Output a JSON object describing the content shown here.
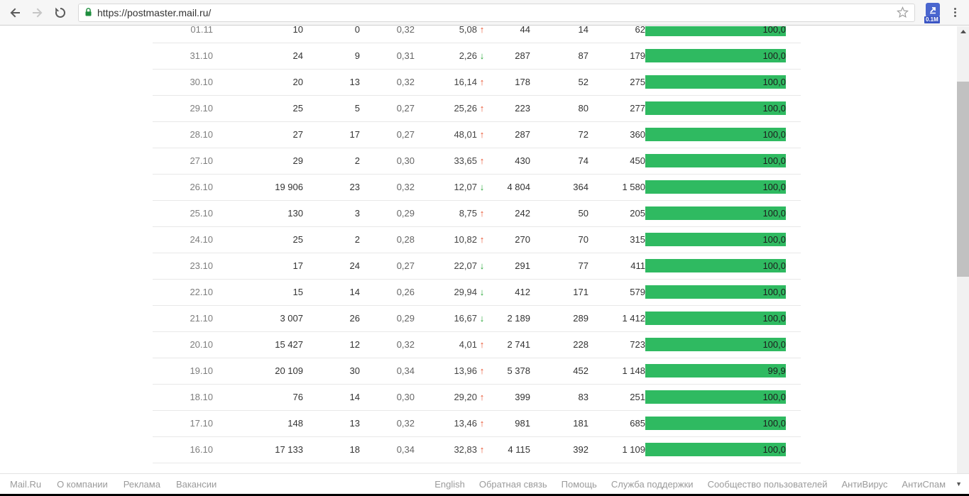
{
  "colors": {
    "bar_green": "#2fba61",
    "trend_up_red": "#e8502c",
    "trend_down_green": "#27a637",
    "lock_green": "#1e8e3e"
  },
  "browser": {
    "url": "https://postmaster.mail.ru/",
    "extension_badge": "0.1M"
  },
  "table": {
    "rows": [
      {
        "date": "01.11",
        "c1": "10",
        "c2": "0",
        "c3": "0,32",
        "pct": "5,08",
        "trend": "up",
        "c4": "44",
        "c5": "14",
        "c6": "62",
        "bar": "100,0",
        "bar_pct": 100
      },
      {
        "date": "31.10",
        "c1": "24",
        "c2": "9",
        "c3": "0,31",
        "pct": "2,26",
        "trend": "down",
        "c4": "287",
        "c5": "87",
        "c6": "179",
        "bar": "100,0",
        "bar_pct": 100
      },
      {
        "date": "30.10",
        "c1": "20",
        "c2": "13",
        "c3": "0,32",
        "pct": "16,14",
        "trend": "up",
        "c4": "178",
        "c5": "52",
        "c6": "275",
        "bar": "100,0",
        "bar_pct": 100
      },
      {
        "date": "29.10",
        "c1": "25",
        "c2": "5",
        "c3": "0,27",
        "pct": "25,26",
        "trend": "up",
        "c4": "223",
        "c5": "80",
        "c6": "277",
        "bar": "100,0",
        "bar_pct": 100
      },
      {
        "date": "28.10",
        "c1": "27",
        "c2": "17",
        "c3": "0,27",
        "pct": "48,01",
        "trend": "up",
        "c4": "287",
        "c5": "72",
        "c6": "360",
        "bar": "100,0",
        "bar_pct": 100
      },
      {
        "date": "27.10",
        "c1": "29",
        "c2": "2",
        "c3": "0,30",
        "pct": "33,65",
        "trend": "up",
        "c4": "430",
        "c5": "74",
        "c6": "450",
        "bar": "100,0",
        "bar_pct": 100
      },
      {
        "date": "26.10",
        "c1": "19 906",
        "c2": "23",
        "c3": "0,32",
        "pct": "12,07",
        "trend": "down",
        "c4": "4 804",
        "c5": "364",
        "c6": "1 580",
        "bar": "100,0",
        "bar_pct": 100
      },
      {
        "date": "25.10",
        "c1": "130",
        "c2": "3",
        "c3": "0,29",
        "pct": "8,75",
        "trend": "up",
        "c4": "242",
        "c5": "50",
        "c6": "205",
        "bar": "100,0",
        "bar_pct": 100
      },
      {
        "date": "24.10",
        "c1": "25",
        "c2": "2",
        "c3": "0,28",
        "pct": "10,82",
        "trend": "up",
        "c4": "270",
        "c5": "70",
        "c6": "315",
        "bar": "100,0",
        "bar_pct": 100
      },
      {
        "date": "23.10",
        "c1": "17",
        "c2": "24",
        "c3": "0,27",
        "pct": "22,07",
        "trend": "down",
        "c4": "291",
        "c5": "77",
        "c6": "411",
        "bar": "100,0",
        "bar_pct": 100
      },
      {
        "date": "22.10",
        "c1": "15",
        "c2": "14",
        "c3": "0,26",
        "pct": "29,94",
        "trend": "down",
        "c4": "412",
        "c5": "171",
        "c6": "579",
        "bar": "100,0",
        "bar_pct": 100
      },
      {
        "date": "21.10",
        "c1": "3 007",
        "c2": "26",
        "c3": "0,29",
        "pct": "16,67",
        "trend": "down",
        "c4": "2 189",
        "c5": "289",
        "c6": "1 412",
        "bar": "100,0",
        "bar_pct": 100
      },
      {
        "date": "20.10",
        "c1": "15 427",
        "c2": "12",
        "c3": "0,32",
        "pct": "4,01",
        "trend": "up",
        "c4": "2 741",
        "c5": "228",
        "c6": "723",
        "bar": "100,0",
        "bar_pct": 100
      },
      {
        "date": "19.10",
        "c1": "20 109",
        "c2": "30",
        "c3": "0,34",
        "pct": "13,96",
        "trend": "up",
        "c4": "5 378",
        "c5": "452",
        "c6": "1 148",
        "bar": "99,9",
        "bar_pct": 99.9
      },
      {
        "date": "18.10",
        "c1": "76",
        "c2": "14",
        "c3": "0,30",
        "pct": "29,20",
        "trend": "up",
        "c4": "399",
        "c5": "83",
        "c6": "251",
        "bar": "100,0",
        "bar_pct": 100
      },
      {
        "date": "17.10",
        "c1": "148",
        "c2": "13",
        "c3": "0,32",
        "pct": "13,46",
        "trend": "up",
        "c4": "981",
        "c5": "181",
        "c6": "685",
        "bar": "100,0",
        "bar_pct": 100
      },
      {
        "date": "16.10",
        "c1": "17 133",
        "c2": "18",
        "c3": "0,34",
        "pct": "32,83",
        "trend": "up",
        "c4": "4 115",
        "c5": "392",
        "c6": "1 109",
        "bar": "100,0",
        "bar_pct": 100
      }
    ]
  },
  "footer": {
    "left_links": [
      "Mail.Ru",
      "О компании",
      "Реклама",
      "Вакансии"
    ],
    "right_links": [
      "English",
      "Обратная связь",
      "Помощь",
      "Служба поддержки",
      "Сообщество пользователей",
      "АнтиВирус",
      "АнтиСпам"
    ],
    "caret": "▼"
  }
}
